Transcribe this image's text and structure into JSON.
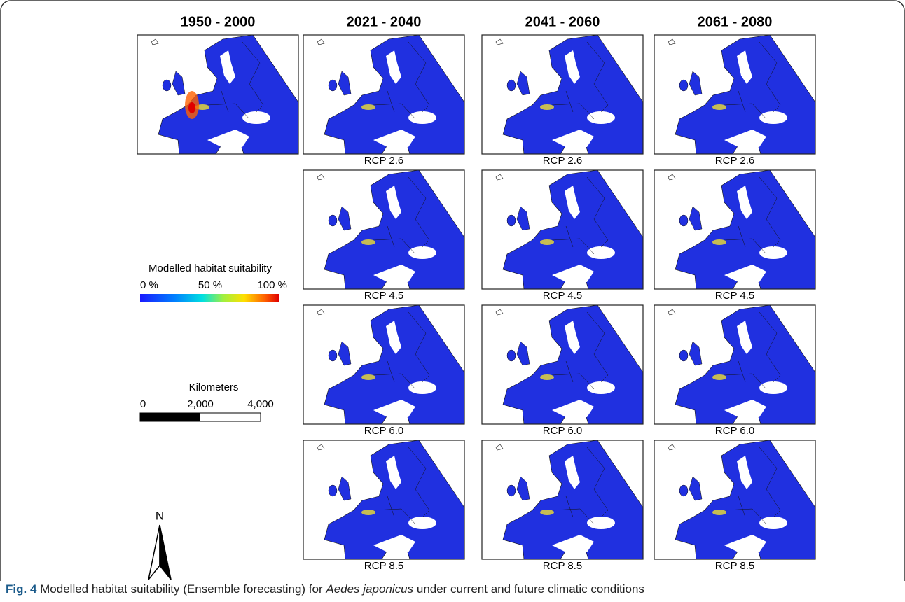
{
  "columns": [
    "1950 - 2000",
    "2021 - 2040",
    "2041 - 2060",
    "2061 - 2080"
  ],
  "scenarios": [
    "RCP 2.6",
    "RCP 4.5",
    "RCP 6.0",
    "RCP 8.5"
  ],
  "legend": {
    "title": "Modelled habitat suitability",
    "ticks": [
      "0 %",
      "50 %",
      "100 %"
    ]
  },
  "scale_bar": {
    "title": "Kilometers",
    "ticks": [
      "0",
      "2,000",
      "4,000"
    ]
  },
  "north": "N",
  "caption": {
    "label": "Fig. 4",
    "text_before": "Modelled habitat suitability (Ensemble forecasting) for",
    "species": "Aedes japonicus",
    "text_after": "under current and future climatic conditions"
  }
}
